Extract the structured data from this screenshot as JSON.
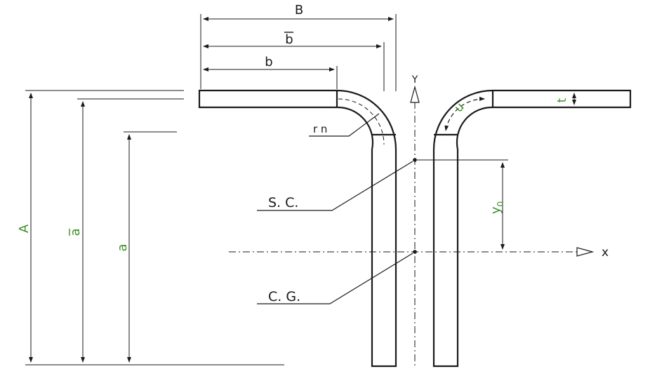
{
  "diagram": {
    "labels": {
      "B": "B",
      "b_bar": "b",
      "b": "b",
      "A": "A",
      "a_bar": "a",
      "a": "a",
      "rn": "r n",
      "sc": "S. C.",
      "cg": "C. G.",
      "y_axis": "Y",
      "x_axis": "x",
      "u": "u",
      "t": "t",
      "y0": "y",
      "y0_sub": "0"
    },
    "colors": {
      "line": "#1a1a1a",
      "dimension_green": "#3f8f2a",
      "background": "#ffffff"
    }
  }
}
